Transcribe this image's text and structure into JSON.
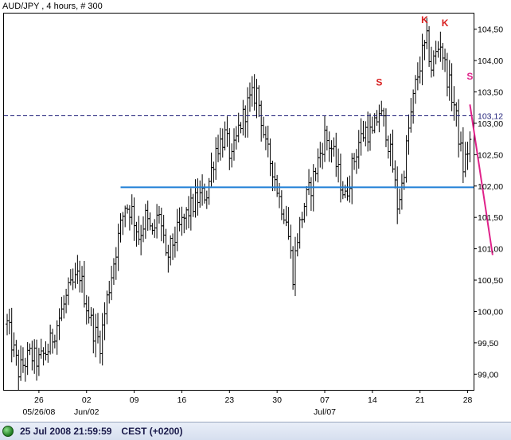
{
  "chart_data": {
    "type": "candlestick",
    "title": "AUD/JPY , 4 hours, # 300",
    "ylim": [
      98.75,
      104.75
    ],
    "y_ticks": [
      {
        "value": 104.5,
        "label": "104,50"
      },
      {
        "value": 104.0,
        "label": "104,00"
      },
      {
        "value": 103.5,
        "label": "103,50"
      },
      {
        "value": 103.0,
        "label": "103,00"
      },
      {
        "value": 102.5,
        "label": "102,50"
      },
      {
        "value": 102.0,
        "label": "102,00"
      },
      {
        "value": 101.5,
        "label": "101,50"
      },
      {
        "value": 101.0,
        "label": "101,00"
      },
      {
        "value": 100.5,
        "label": "100,50"
      },
      {
        "value": 100.0,
        "label": "100,00"
      },
      {
        "value": 99.5,
        "label": "99,50"
      },
      {
        "value": 99.0,
        "label": "99,00"
      }
    ],
    "x_ticks": [
      {
        "index": 14,
        "label": "26",
        "sublabel": "05/26/08"
      },
      {
        "index": 35,
        "label": "02",
        "sublabel": "Jun/02"
      },
      {
        "index": 56,
        "label": "09",
        "sublabel": ""
      },
      {
        "index": 77,
        "label": "16",
        "sublabel": ""
      },
      {
        "index": 98,
        "label": "23",
        "sublabel": ""
      },
      {
        "index": 119,
        "label": "30",
        "sublabel": ""
      },
      {
        "index": 140,
        "label": "07",
        "sublabel": "Jul/07"
      },
      {
        "index": 161,
        "label": "14",
        "sublabel": ""
      },
      {
        "index": 182,
        "label": "21",
        "sublabel": ""
      },
      {
        "index": 203,
        "label": "28",
        "sublabel": ""
      }
    ],
    "bar_count": 205,
    "anchors": [
      [
        0,
        99.8
      ],
      [
        5,
        99.05
      ],
      [
        10,
        99.3
      ],
      [
        14,
        99.2
      ],
      [
        18,
        99.4
      ],
      [
        22,
        99.8
      ],
      [
        27,
        100.3
      ],
      [
        32,
        100.6
      ],
      [
        35,
        100.1
      ],
      [
        38,
        99.7
      ],
      [
        41,
        99.5
      ],
      [
        44,
        100.2
      ],
      [
        48,
        101.0
      ],
      [
        52,
        101.7
      ],
      [
        55,
        101.6
      ],
      [
        58,
        101.2
      ],
      [
        61,
        101.5
      ],
      [
        64,
        101.2
      ],
      [
        67,
        101.6
      ],
      [
        70,
        100.8
      ],
      [
        73,
        101.1
      ],
      [
        77,
        101.4
      ],
      [
        80,
        101.6
      ],
      [
        84,
        101.8
      ],
      [
        88,
        101.9
      ],
      [
        92,
        102.6
      ],
      [
        96,
        102.8
      ],
      [
        99,
        102.4
      ],
      [
        102,
        102.9
      ],
      [
        106,
        103.3
      ],
      [
        110,
        103.5
      ],
      [
        112,
        103.1
      ],
      [
        114,
        102.6
      ],
      [
        117,
        102.3
      ],
      [
        120,
        101.8
      ],
      [
        123,
        101.5
      ],
      [
        126,
        100.6
      ],
      [
        128,
        101.2
      ],
      [
        131,
        101.7
      ],
      [
        134,
        102.0
      ],
      [
        137,
        102.4
      ],
      [
        140,
        102.8
      ],
      [
        143,
        102.6
      ],
      [
        146,
        102.2
      ],
      [
        149,
        101.8
      ],
      [
        152,
        102.3
      ],
      [
        155,
        102.7
      ],
      [
        158,
        102.9
      ],
      [
        161,
        102.8
      ],
      [
        164,
        103.2
      ],
      [
        167,
        102.9
      ],
      [
        170,
        102.3
      ],
      [
        172,
        101.7
      ],
      [
        174,
        102.0
      ],
      [
        177,
        102.9
      ],
      [
        180,
        103.6
      ],
      [
        183,
        104.1
      ],
      [
        185,
        104.3
      ],
      [
        187,
        103.9
      ],
      [
        189,
        104.1
      ],
      [
        191,
        104.3
      ],
      [
        193,
        103.9
      ],
      [
        195,
        103.6
      ],
      [
        197,
        103.3
      ],
      [
        199,
        102.8
      ],
      [
        201,
        102.3
      ],
      [
        204,
        102.7
      ]
    ],
    "horizontal_lines": [
      {
        "value": 103.12,
        "label": "103,12",
        "style": "dashed",
        "color": "#1e1e78"
      },
      {
        "value": 101.98,
        "label": "",
        "style": "solid",
        "color": "#1f7fd6",
        "from_index": 50
      }
    ],
    "trend_line": {
      "from": [
        204,
        103.3
      ],
      "to": [
        214,
        100.9
      ],
      "color": "#e0228a"
    },
    "annotations": [
      {
        "text": "K",
        "index": 184,
        "value": 104.6,
        "color": "#d81e1e"
      },
      {
        "text": "K",
        "index": 193,
        "value": 104.55,
        "color": "#d81e1e"
      },
      {
        "text": "S",
        "index": 164,
        "value": 103.6,
        "color": "#d81e1e"
      },
      {
        "text": "S",
        "index": 204,
        "value": 103.7,
        "color": "#e0228a"
      }
    ],
    "colors": {
      "bars": "#000000",
      "axis_text": "#000000",
      "price_tag": "#1e1e78"
    }
  },
  "status": {
    "datetime": "25 Jul 2008 21:59:59",
    "timezone": "CEST (+0200)"
  }
}
